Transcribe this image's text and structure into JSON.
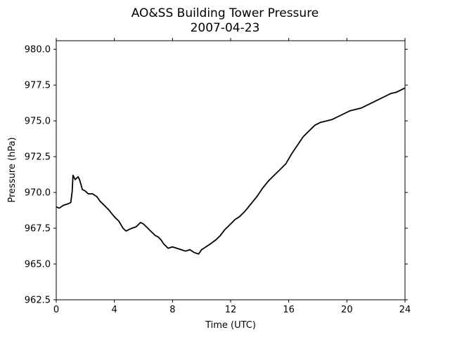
{
  "chart_data": {
    "type": "line",
    "title": "AO&SS Building Tower Pressure",
    "subtitle": "2007-04-23",
    "xlabel": "Time (UTC)",
    "ylabel": "Pressure (hPa)",
    "xlim": [
      0,
      24
    ],
    "ylim": [
      962.5,
      980.6
    ],
    "x_ticks": [
      0,
      4,
      8,
      12,
      16,
      20,
      24
    ],
    "x_tick_labels": [
      "0",
      "4",
      "8",
      "12",
      "16",
      "20",
      "24"
    ],
    "y_ticks": [
      962.5,
      965.0,
      967.5,
      970.0,
      972.5,
      975.0,
      977.5,
      980.0
    ],
    "y_tick_labels": [
      "962.5",
      "965.0",
      "967.5",
      "970.0",
      "972.5",
      "975.0",
      "977.5",
      "980.0"
    ],
    "grid": false,
    "legend": "none",
    "series": [
      {
        "color": "#000000",
        "x": [
          0,
          0.2,
          0.5,
          0.8,
          1.0,
          1.1,
          1.15,
          1.3,
          1.5,
          1.6,
          1.8,
          2.0,
          2.2,
          2.5,
          2.8,
          3.0,
          3.3,
          3.6,
          4.0,
          4.3,
          4.6,
          4.8,
          5.0,
          5.2,
          5.5,
          5.8,
          6.0,
          6.2,
          6.5,
          6.8,
          7.0,
          7.2,
          7.4,
          7.7,
          8.0,
          8.3,
          8.6,
          8.9,
          9.2,
          9.5,
          9.8,
          10.0,
          10.3,
          10.6,
          11.0,
          11.3,
          11.6,
          12.0,
          12.3,
          12.6,
          13.0,
          13.4,
          13.8,
          14.2,
          14.6,
          15.0,
          15.4,
          15.8,
          16.2,
          16.6,
          17.0,
          17.4,
          17.8,
          18.2,
          18.6,
          19.0,
          19.4,
          19.8,
          20.2,
          20.6,
          21.0,
          21.4,
          21.8,
          22.2,
          22.6,
          23.0,
          23.4,
          23.8,
          24.0
        ],
        "y": [
          969.0,
          968.9,
          969.1,
          969.2,
          969.3,
          970.1,
          971.2,
          970.9,
          971.1,
          970.9,
          970.2,
          970.1,
          969.9,
          969.9,
          969.7,
          969.4,
          969.1,
          968.8,
          968.3,
          968.0,
          967.5,
          967.3,
          967.4,
          967.5,
          967.6,
          967.9,
          967.8,
          967.6,
          967.3,
          967.0,
          966.9,
          966.7,
          966.4,
          966.1,
          966.2,
          966.1,
          966.0,
          965.9,
          966.0,
          965.8,
          965.7,
          966.0,
          966.2,
          966.4,
          966.7,
          967.0,
          967.4,
          967.8,
          968.1,
          968.3,
          968.7,
          969.2,
          969.7,
          970.3,
          970.8,
          971.2,
          971.6,
          972.0,
          972.7,
          973.3,
          973.9,
          974.3,
          974.7,
          974.9,
          975.0,
          975.1,
          975.3,
          975.5,
          975.7,
          975.8,
          975.9,
          976.1,
          976.3,
          976.5,
          976.7,
          976.9,
          977.0,
          977.2,
          977.3
        ]
      }
    ]
  }
}
